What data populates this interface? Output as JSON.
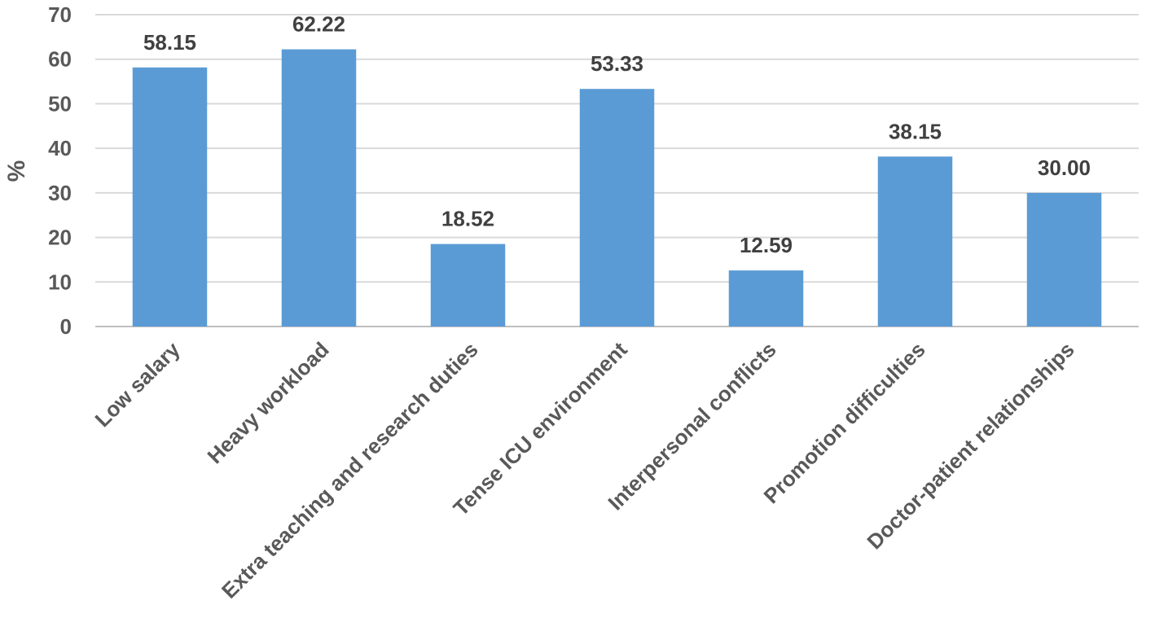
{
  "chart_data": {
    "type": "bar",
    "title": "",
    "xlabel": "",
    "ylabel": "%",
    "ylim": [
      0,
      70
    ],
    "yticks": [
      0,
      10,
      20,
      30,
      40,
      50,
      60,
      70
    ],
    "grid": true,
    "legend": "none",
    "categories": [
      "Low salary",
      "Heavy workload",
      "Extra teaching and research duties",
      "Tense ICU environment",
      "Interpersonal conflicts",
      "Promotion difficulties",
      "Doctor-patient relationships"
    ],
    "values": [
      58.15,
      62.22,
      18.52,
      53.33,
      12.59,
      38.15,
      30.0
    ],
    "value_labels": [
      "58.15",
      "62.22",
      "18.52",
      "53.33",
      "12.59",
      "38.15",
      "30.00"
    ],
    "bar_color": "#5b9bd5"
  }
}
